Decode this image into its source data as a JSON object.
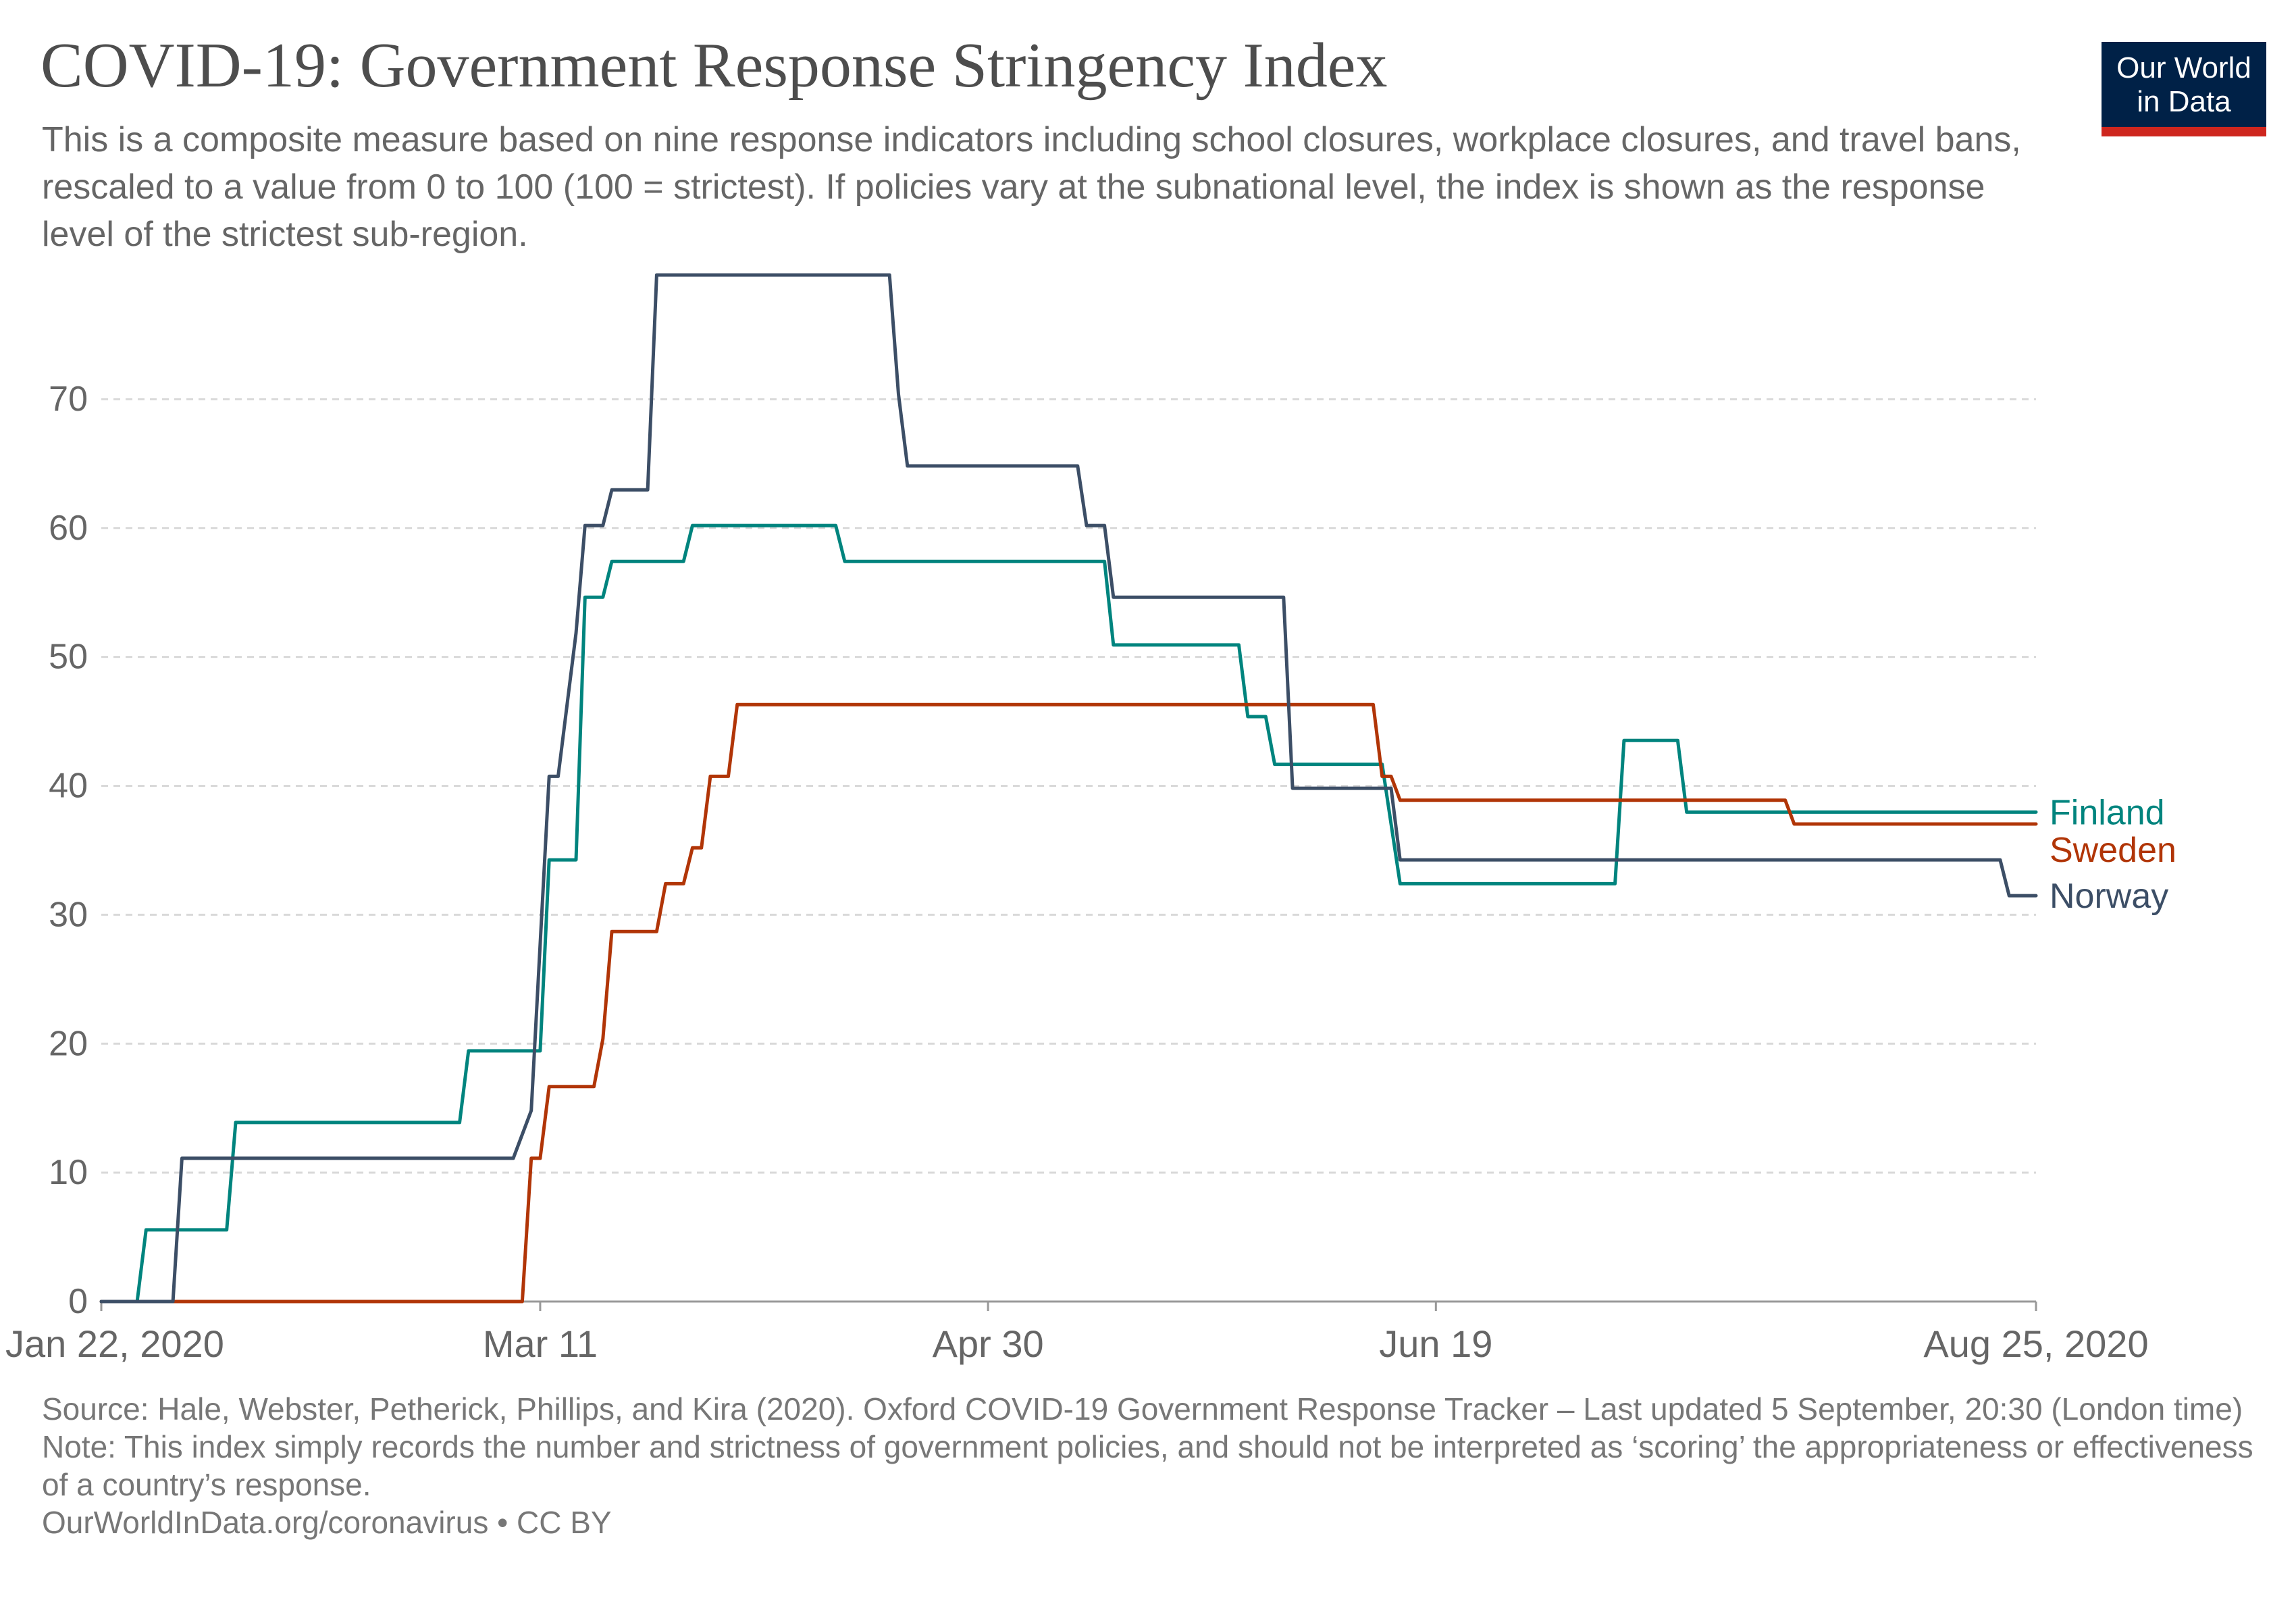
{
  "header": {
    "title": "COVID-19: Government Response Stringency Index",
    "subtitle": "This is a composite measure based on nine response indicators including school closures, workplace closures, and travel bans, rescaled to a value from 0 to 100 (100 = strictest). If policies vary at the subnational level, the index is shown as the response level of the strictest sub-region."
  },
  "logo": {
    "line1": "Our World",
    "line2": "in Data",
    "background_color": "#002147",
    "accent_color": "#ce261e"
  },
  "footer": {
    "source": "Source: Hale, Webster, Petherick, Phillips, and Kira (2020). Oxford COVID-19 Government Response Tracker – Last updated 5 September, 20:30 (London time)",
    "note": "Note: This index simply records the number and strictness of government policies, and should not be interpreted as ‘scoring’ the appropriateness or effectiveness of a country’s response.",
    "link": "OurWorldInData.org/coronavirus • CC BY"
  },
  "chart_data": {
    "type": "line",
    "title": "COVID-19: Government Response Stringency Index",
    "xlabel": "",
    "ylabel": "",
    "x_domain": [
      "2020-01-22",
      "2020-08-25"
    ],
    "x_ticks": [
      {
        "date": "2020-01-22",
        "label": "Jan 22, 2020"
      },
      {
        "date": "2020-03-11",
        "label": "Mar 11"
      },
      {
        "date": "2020-04-30",
        "label": "Apr 30"
      },
      {
        "date": "2020-06-19",
        "label": "Jun 19"
      },
      {
        "date": "2020-08-25",
        "label": "Aug 25, 2020"
      }
    ],
    "ylim": [
      0,
      80
    ],
    "y_ticks": [
      0,
      10,
      20,
      30,
      40,
      50,
      60,
      70
    ],
    "grid": "horizontal dashed",
    "legend": "line-end labels",
    "series": [
      {
        "name": "Finland",
        "color": "#00847e",
        "points": [
          [
            "2020-01-22",
            0
          ],
          [
            "2020-01-26",
            0
          ],
          [
            "2020-01-27",
            5.56
          ],
          [
            "2020-02-05",
            5.56
          ],
          [
            "2020-02-06",
            13.89
          ],
          [
            "2020-03-02",
            13.89
          ],
          [
            "2020-03-03",
            19.44
          ],
          [
            "2020-03-11",
            19.44
          ],
          [
            "2020-03-12",
            34.26
          ],
          [
            "2020-03-15",
            34.26
          ],
          [
            "2020-03-16",
            54.63
          ],
          [
            "2020-03-18",
            54.63
          ],
          [
            "2020-03-19",
            57.41
          ],
          [
            "2020-03-27",
            57.41
          ],
          [
            "2020-03-28",
            60.19
          ],
          [
            "2020-04-13",
            60.19
          ],
          [
            "2020-04-14",
            57.41
          ],
          [
            "2020-05-13",
            57.41
          ],
          [
            "2020-05-14",
            50.93
          ],
          [
            "2020-05-28",
            50.93
          ],
          [
            "2020-05-29",
            45.37
          ],
          [
            "2020-05-31",
            45.37
          ],
          [
            "2020-06-01",
            41.67
          ],
          [
            "2020-06-13",
            41.67
          ],
          [
            "2020-06-15",
            32.41
          ],
          [
            "2020-07-09",
            32.41
          ],
          [
            "2020-07-10",
            43.52
          ],
          [
            "2020-07-16",
            43.52
          ],
          [
            "2020-07-17",
            37.96
          ],
          [
            "2020-08-25",
            37.96
          ]
        ]
      },
      {
        "name": "Sweden",
        "color": "#b13507",
        "points": [
          [
            "2020-01-22",
            0
          ],
          [
            "2020-03-09",
            0
          ],
          [
            "2020-03-10",
            11.11
          ],
          [
            "2020-03-11",
            11.11
          ],
          [
            "2020-03-12",
            16.67
          ],
          [
            "2020-03-17",
            16.67
          ],
          [
            "2020-03-18",
            20.37
          ],
          [
            "2020-03-19",
            28.7
          ],
          [
            "2020-03-24",
            28.7
          ],
          [
            "2020-03-25",
            32.41
          ],
          [
            "2020-03-27",
            32.41
          ],
          [
            "2020-03-28",
            35.19
          ],
          [
            "2020-03-29",
            35.19
          ],
          [
            "2020-03-30",
            40.74
          ],
          [
            "2020-04-01",
            40.74
          ],
          [
            "2020-04-02",
            46.3
          ],
          [
            "2020-06-12",
            46.3
          ],
          [
            "2020-06-13",
            40.74
          ],
          [
            "2020-06-14",
            40.74
          ],
          [
            "2020-06-15",
            38.89
          ],
          [
            "2020-07-28",
            38.89
          ],
          [
            "2020-07-29",
            37.04
          ],
          [
            "2020-08-25",
            37.04
          ]
        ]
      },
      {
        "name": "Norway",
        "color": "#3c4e66",
        "points": [
          [
            "2020-01-22",
            0
          ],
          [
            "2020-01-30",
            0
          ],
          [
            "2020-01-31",
            11.11
          ],
          [
            "2020-03-08",
            11.11
          ],
          [
            "2020-03-10",
            14.81
          ],
          [
            "2020-03-12",
            40.74
          ],
          [
            "2020-03-13",
            40.74
          ],
          [
            "2020-03-15",
            51.85
          ],
          [
            "2020-03-16",
            60.19
          ],
          [
            "2020-03-18",
            60.19
          ],
          [
            "2020-03-19",
            62.96
          ],
          [
            "2020-03-23",
            62.96
          ],
          [
            "2020-03-24",
            79.63
          ],
          [
            "2020-04-19",
            79.63
          ],
          [
            "2020-04-20",
            70.37
          ],
          [
            "2020-04-21",
            64.81
          ],
          [
            "2020-05-10",
            64.81
          ],
          [
            "2020-05-11",
            60.19
          ],
          [
            "2020-05-13",
            60.19
          ],
          [
            "2020-05-14",
            54.63
          ],
          [
            "2020-06-02",
            54.63
          ],
          [
            "2020-06-03",
            39.81
          ],
          [
            "2020-06-14",
            39.81
          ],
          [
            "2020-06-15",
            34.26
          ],
          [
            "2020-08-21",
            34.26
          ],
          [
            "2020-08-22",
            31.48
          ],
          [
            "2020-08-25",
            31.48
          ]
        ]
      }
    ]
  }
}
